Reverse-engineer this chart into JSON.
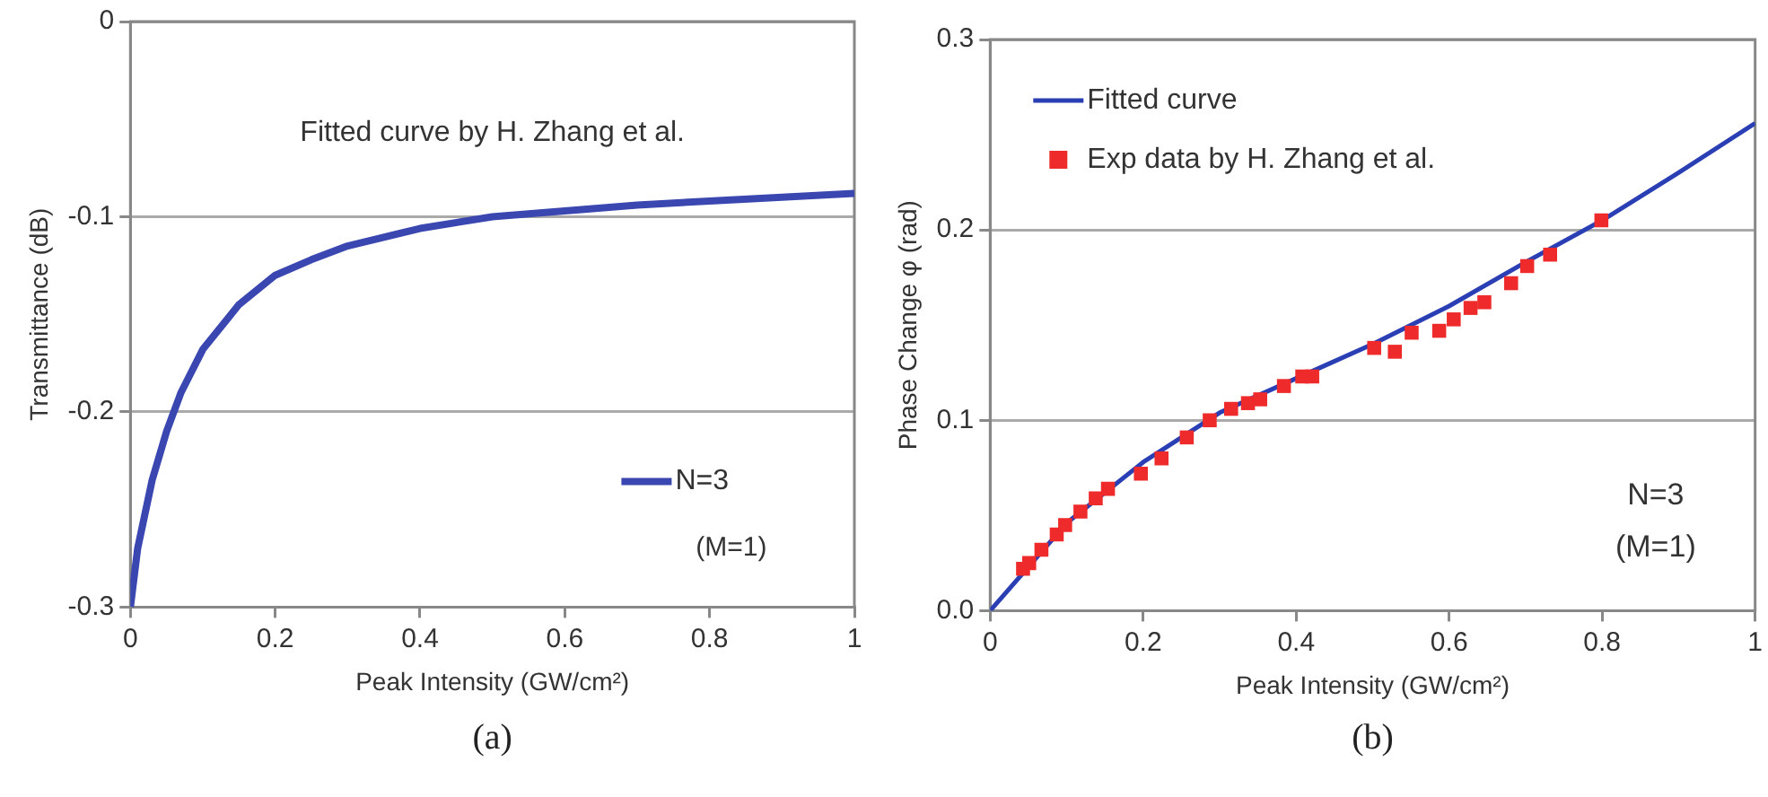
{
  "chart_data": [
    {
      "type": "line",
      "xlabel": "Peak Intensity (GW/cm²)",
      "ylabel": "Transmittance (dB)",
      "xlim": [
        0,
        1
      ],
      "xticks": [
        0,
        0.2,
        0.4,
        0.6,
        0.8,
        1
      ],
      "ylim": [
        -0.3,
        0
      ],
      "yticks": [
        -0.3,
        -0.2,
        -0.1,
        0
      ],
      "grid": "y",
      "legend": "bottom right",
      "marker": "none",
      "line_style": "solid",
      "series": [
        {
          "name": "N=3",
          "color": "#3a47b0",
          "x": [
            0,
            0.01,
            0.03,
            0.05,
            0.07,
            0.1,
            0.15,
            0.2,
            0.25,
            0.3,
            0.4,
            0.5,
            0.6,
            0.7,
            0.8,
            0.9,
            1
          ],
          "values": [
            -0.3,
            -0.27,
            -0.235,
            -0.21,
            -0.19,
            -0.168,
            -0.145,
            -0.13,
            -0.122,
            -0.115,
            -0.106,
            -0.1,
            -0.097,
            -0.094,
            -0.092,
            -0.09,
            -0.088
          ]
        }
      ],
      "annotations": [
        "Fitted curve by H. Zhang et al.",
        "(M=1)",
        "(a)"
      ]
    },
    {
      "type": "line",
      "xlabel": "Peak Intensity (GW/cm²)",
      "ylabel": "Phase Change φ (rad)",
      "xlim": [
        0,
        1
      ],
      "xticks": [
        0,
        0.2,
        0.4,
        0.6,
        0.8,
        1
      ],
      "ylim": [
        0,
        0.3
      ],
      "yticks": [
        {
          "value": 0,
          "label": "0.0"
        },
        0.1,
        0.2,
        0.3
      ],
      "grid": "y",
      "legend": "top left",
      "line_style": "solid",
      "series": [
        {
          "name": "Fitted curve",
          "color": "#2b3fb5",
          "marker": "none",
          "x": [
            0,
            0.1,
            0.2,
            0.3,
            0.4,
            0.5,
            0.6,
            0.7,
            0.8,
            0.9,
            1
          ],
          "values": [
            0,
            0.046,
            0.078,
            0.104,
            0.122,
            0.14,
            0.16,
            0.183,
            0.205,
            0.23,
            0.256
          ]
        },
        {
          "name": "Exp data by H. Zhang et al.",
          "type": "scatter",
          "marker": "square",
          "color": "#ee2a2a",
          "x": [
            0.043,
            0.051,
            0.067,
            0.087,
            0.098,
            0.118,
            0.138,
            0.154,
            0.197,
            0.224,
            0.257,
            0.287,
            0.315,
            0.337,
            0.353,
            0.384,
            0.408,
            0.421,
            0.502,
            0.529,
            0.551,
            0.587,
            0.606,
            0.628,
            0.646,
            0.681,
            0.702,
            0.732,
            0.799
          ],
          "values": [
            0.022,
            0.025,
            0.032,
            0.04,
            0.045,
            0.052,
            0.059,
            0.064,
            0.072,
            0.08,
            0.091,
            0.1,
            0.106,
            0.109,
            0.111,
            0.118,
            0.123,
            0.123,
            0.138,
            0.136,
            0.146,
            0.147,
            0.153,
            0.159,
            0.162,
            0.172,
            0.181,
            0.187,
            0.205
          ]
        }
      ],
      "annotations": [
        "N=3",
        "(M=1)",
        "(b)"
      ]
    }
  ]
}
